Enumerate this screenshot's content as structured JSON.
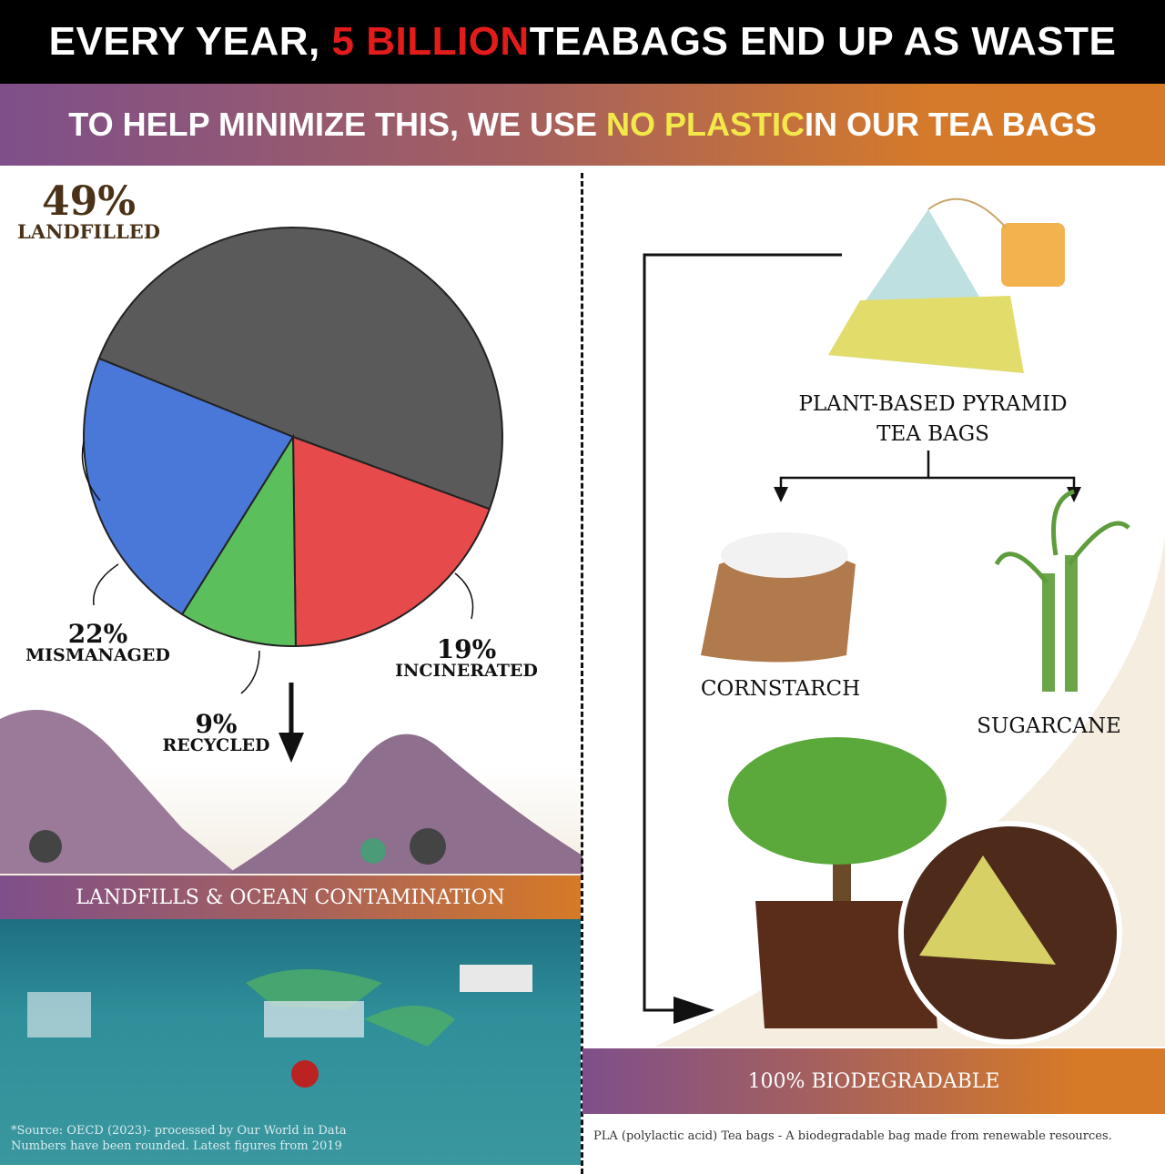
{
  "header": {
    "prefix": "EVERY YEAR, ",
    "highlight": "5 BILLION",
    "suffix": " TEABAGS END UP AS WASTE"
  },
  "subheader": {
    "prefix": "TO HELP MINIMIZE THIS, WE USE ",
    "highlight": "NO PLASTIC",
    "suffix": " IN OUR TEA BAGS"
  },
  "chart_data": {
    "type": "pie",
    "categories": [
      "LANDFILLED",
      "INCINERATED",
      "RECYCLED",
      "MISMANAGED"
    ],
    "values": [
      49,
      19,
      9,
      22
    ],
    "labels": [
      "49%",
      "19%",
      "9%",
      "22%"
    ],
    "colors": [
      "#5a5a5a",
      "#e64a4a",
      "#5bbf5b",
      "#4a78d9"
    ]
  },
  "left": {
    "band": "LANDFILLS &  OCEAN CONTAMINATION",
    "source_line1": "*Source: OECD (2023)- processed by Our World in Data",
    "source_line2": "Numbers have been rounded. Latest figures from 2019"
  },
  "right": {
    "teabag_line1": "PLANT-BASED PYRAMID",
    "teabag_line2": "TEA BAGS",
    "cornstarch": "CORNSTARCH",
    "sugarcane": "SUGARCANE",
    "band": "100% BIODEGRADABLE",
    "footnote": "PLA (polylactic acid) Tea bags - A biodegradable bag made from renewable resources."
  }
}
